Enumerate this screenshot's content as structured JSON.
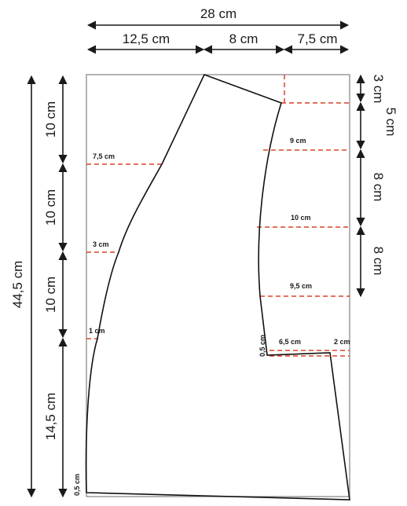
{
  "dimensions": {
    "total_width": "28 cm",
    "seg_left": "12,5 cm",
    "seg_mid": "8 cm",
    "seg_right": "7,5 cm",
    "total_height": "44,5 cm",
    "left_a": "10 cm",
    "left_b": "10 cm",
    "left_c": "10 cm",
    "left_d": "14,5 cm",
    "right_3": "3 cm",
    "right_5": "5 cm",
    "right_8a": "8 cm",
    "right_8b": "8 cm"
  },
  "measurements": {
    "front_7_5": "7,5 cm",
    "front_3": "3 cm",
    "front_1": "1 cm",
    "arm_9": "9 cm",
    "arm_10": "10 cm",
    "arm_9_5": "9,5 cm",
    "notch_0_5": "0,5 cm",
    "notch_6_5": "6,5 cm",
    "notch_2": "2 cm",
    "bottom_0_5": "0,5 cm"
  }
}
